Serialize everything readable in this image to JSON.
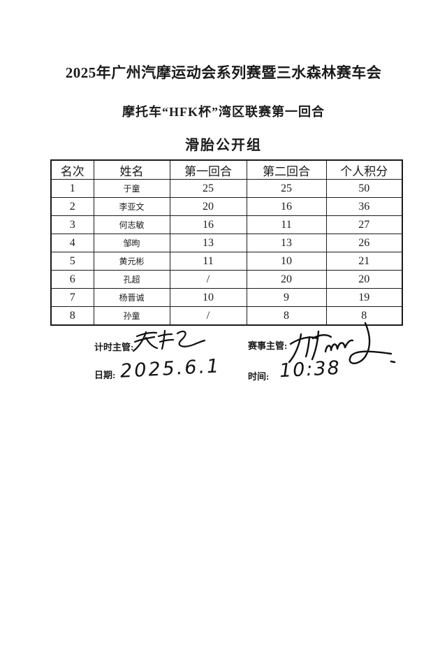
{
  "page": {
    "title_line1": "2025年广州汽摩运动会系列赛暨三水森林赛车会",
    "title_line2": "摩托车“HFK杯”湾区联赛第一回合",
    "group_title": "滑胎公开组"
  },
  "table": {
    "headers": [
      "名次",
      "姓名",
      "第一回合",
      "第二回合",
      "个人积分"
    ],
    "rows": [
      [
        "1",
        "于童",
        "25",
        "25",
        "50"
      ],
      [
        "2",
        "李亚文",
        "20",
        "16",
        "36"
      ],
      [
        "3",
        "何志敏",
        "16",
        "11",
        "27"
      ],
      [
        "4",
        "邹昫",
        "13",
        "13",
        "26"
      ],
      [
        "5",
        "黄元彬",
        "11",
        "10",
        "21"
      ],
      [
        "6",
        "孔超",
        "/",
        "20",
        "20"
      ],
      [
        "7",
        "杨晋诚",
        "10",
        "9",
        "19"
      ],
      [
        "8",
        "孙童",
        "/",
        "8",
        "8"
      ]
    ]
  },
  "footer": {
    "timekeeper_label": "计时主管:",
    "director_label": "赛事主管:",
    "date_label": "日期:",
    "date_value": "2025.6.1",
    "time_label": "时间:",
    "time_value": "10:38",
    "timekeeper_signature": "handwritten-signature",
    "director_signature": "handwritten-signature"
  }
}
